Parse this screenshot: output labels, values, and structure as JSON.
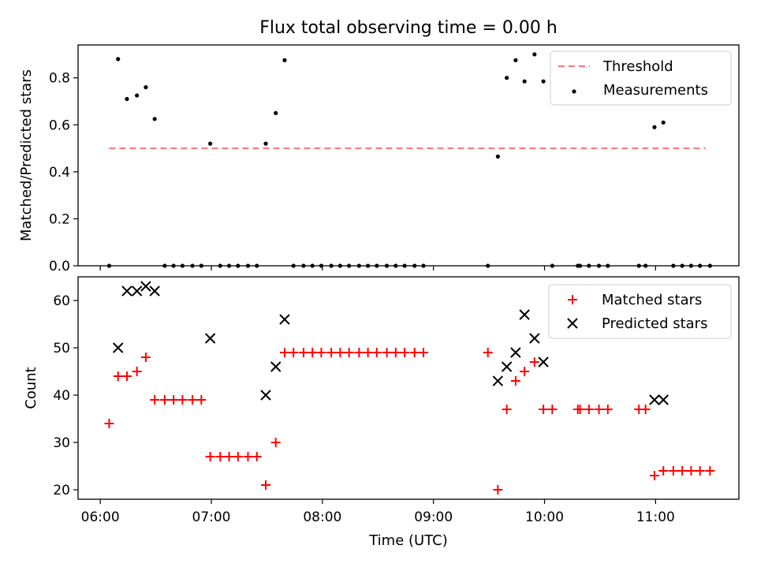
{
  "title": "Flux total observing time = 0.00 h",
  "chart_data": [
    {
      "type": "scatter",
      "ylabel": "Matched/Predicted stars",
      "ylim": [
        0,
        0.94
      ],
      "xlim": [
        5.8,
        11.75
      ],
      "yticks": [
        "0.0",
        "0.2",
        "0.4",
        "0.6",
        "0.8"
      ],
      "ytick_values": [
        0,
        0.2,
        0.4,
        0.6,
        0.8
      ],
      "legend": {
        "position": "top-right",
        "threshold_label": "Threshold",
        "measurements_label": "Measurements"
      },
      "threshold": {
        "value": 0.5,
        "x_start": 6.08,
        "x_end": 11.45,
        "color": "#f47d7d"
      },
      "measurements": {
        "color": "#000000",
        "points": [
          [
            6.08,
            0
          ],
          [
            6.16,
            0.88
          ],
          [
            6.24,
            0.71
          ],
          [
            6.33,
            0.725
          ],
          [
            6.41,
            0.76
          ],
          [
            6.49,
            0.625
          ],
          [
            6.58,
            0
          ],
          [
            6.66,
            0
          ],
          [
            6.74,
            0
          ],
          [
            6.83,
            0
          ],
          [
            6.91,
            0
          ],
          [
            6.99,
            0.52
          ],
          [
            7.08,
            0
          ],
          [
            7.16,
            0
          ],
          [
            7.24,
            0
          ],
          [
            7.33,
            0
          ],
          [
            7.41,
            0
          ],
          [
            7.49,
            0.52
          ],
          [
            7.58,
            0.65
          ],
          [
            7.66,
            0.875
          ],
          [
            7.74,
            0
          ],
          [
            7.83,
            0
          ],
          [
            7.91,
            0
          ],
          [
            7.99,
            0
          ],
          [
            8.08,
            0
          ],
          [
            8.16,
            0
          ],
          [
            8.24,
            0
          ],
          [
            8.33,
            0
          ],
          [
            8.41,
            0
          ],
          [
            8.49,
            0
          ],
          [
            8.58,
            0
          ],
          [
            8.66,
            0
          ],
          [
            8.74,
            0
          ],
          [
            8.83,
            0
          ],
          [
            8.91,
            0
          ],
          [
            9.49,
            0
          ],
          [
            9.58,
            0.465
          ],
          [
            9.66,
            0.8
          ],
          [
            9.74,
            0.875
          ],
          [
            9.82,
            0.785
          ],
          [
            9.91,
            0.9
          ],
          [
            9.99,
            0.785
          ],
          [
            10.07,
            0
          ],
          [
            10.3,
            0
          ],
          [
            10.32,
            0
          ],
          [
            10.4,
            0
          ],
          [
            10.49,
            0
          ],
          [
            10.57,
            0
          ],
          [
            10.85,
            0
          ],
          [
            10.91,
            0
          ],
          [
            10.99,
            0.59
          ],
          [
            11.07,
            0.61
          ],
          [
            11.16,
            0
          ],
          [
            11.24,
            0
          ],
          [
            11.32,
            0
          ],
          [
            11.4,
            0
          ],
          [
            11.49,
            0
          ]
        ]
      }
    },
    {
      "type": "scatter",
      "xlabel": "Time (UTC)",
      "ylabel": "Count",
      "ylim": [
        18,
        65
      ],
      "xlim": [
        5.8,
        11.75
      ],
      "yticks": [
        "20",
        "30",
        "40",
        "50",
        "60"
      ],
      "ytick_values": [
        20,
        30,
        40,
        50,
        60
      ],
      "xticks": [
        "06:00",
        "07:00",
        "08:00",
        "09:00",
        "10:00",
        "11:00"
      ],
      "xtick_values": [
        6,
        7,
        8,
        9,
        10,
        11
      ],
      "legend": {
        "position": "top-right"
      },
      "series": [
        {
          "name": "Matched stars",
          "marker": "plus",
          "color": "#ff0000",
          "points": [
            [
              6.08,
              34
            ],
            [
              6.16,
              44
            ],
            [
              6.24,
              44
            ],
            [
              6.33,
              45
            ],
            [
              6.41,
              48
            ],
            [
              6.49,
              39
            ],
            [
              6.58,
              39
            ],
            [
              6.66,
              39
            ],
            [
              6.74,
              39
            ],
            [
              6.83,
              39
            ],
            [
              6.91,
              39
            ],
            [
              6.99,
              27
            ],
            [
              7.08,
              27
            ],
            [
              7.16,
              27
            ],
            [
              7.24,
              27
            ],
            [
              7.33,
              27
            ],
            [
              7.41,
              27
            ],
            [
              7.49,
              21
            ],
            [
              7.58,
              30
            ],
            [
              7.66,
              49
            ],
            [
              7.74,
              49
            ],
            [
              7.83,
              49
            ],
            [
              7.91,
              49
            ],
            [
              7.99,
              49
            ],
            [
              8.08,
              49
            ],
            [
              8.16,
              49
            ],
            [
              8.24,
              49
            ],
            [
              8.33,
              49
            ],
            [
              8.41,
              49
            ],
            [
              8.49,
              49
            ],
            [
              8.58,
              49
            ],
            [
              8.66,
              49
            ],
            [
              8.74,
              49
            ],
            [
              8.83,
              49
            ],
            [
              8.91,
              49
            ],
            [
              9.49,
              49
            ],
            [
              9.58,
              20
            ],
            [
              9.66,
              37
            ],
            [
              9.74,
              43
            ],
            [
              9.82,
              45
            ],
            [
              9.91,
              47
            ],
            [
              9.99,
              37
            ],
            [
              10.07,
              37
            ],
            [
              10.3,
              37
            ],
            [
              10.32,
              37
            ],
            [
              10.4,
              37
            ],
            [
              10.49,
              37
            ],
            [
              10.57,
              37
            ],
            [
              10.85,
              37
            ],
            [
              10.91,
              37
            ],
            [
              10.99,
              23
            ],
            [
              11.07,
              24
            ],
            [
              11.16,
              24
            ],
            [
              11.24,
              24
            ],
            [
              11.32,
              24
            ],
            [
              11.4,
              24
            ],
            [
              11.49,
              24
            ]
          ]
        },
        {
          "name": "Predicted stars",
          "marker": "x",
          "color": "#000000",
          "points": [
            [
              6.16,
              50
            ],
            [
              6.24,
              62
            ],
            [
              6.33,
              62
            ],
            [
              6.41,
              63
            ],
            [
              6.49,
              62
            ],
            [
              6.99,
              52
            ],
            [
              7.49,
              40
            ],
            [
              7.58,
              46
            ],
            [
              7.66,
              56
            ],
            [
              9.58,
              43
            ],
            [
              9.66,
              46
            ],
            [
              9.74,
              49
            ],
            [
              9.82,
              57
            ],
            [
              9.91,
              52
            ],
            [
              9.99,
              47
            ],
            [
              10.99,
              39
            ],
            [
              11.07,
              39
            ]
          ]
        }
      ]
    }
  ]
}
